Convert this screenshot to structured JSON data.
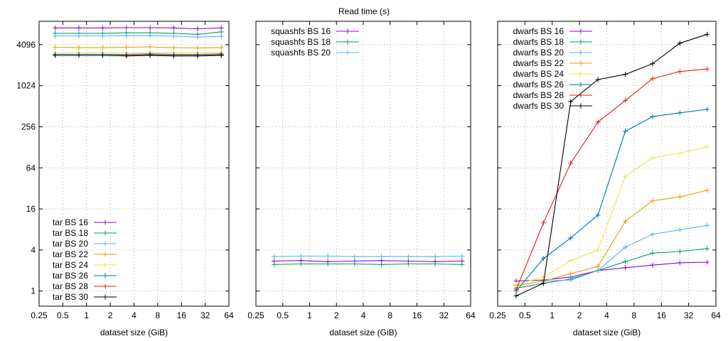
{
  "title": "Read time (s)",
  "chart_data": [
    {
      "type": "line",
      "xscale": "log2",
      "yscale": "log2",
      "xlim": [
        0.25,
        64
      ],
      "ylim": [
        0.6,
        9000
      ],
      "xticks": [
        "0.25",
        "0.5",
        "1",
        "2",
        "4",
        "8",
        "16",
        "32",
        "64"
      ],
      "yticks": [
        "1",
        "4",
        "16",
        "64",
        "256",
        "1024",
        "4096"
      ],
      "xlabel": "dataset size (GiB)",
      "legend_position": "bottom-left",
      "series": [
        {
          "name": "tar BS 16",
          "color": "#9400d3",
          "x": [
            0.4,
            0.8,
            1.6,
            3.2,
            6.4,
            12.8,
            25.6,
            51.2
          ],
          "y": [
            7200,
            7200,
            7200,
            7250,
            7250,
            7200,
            7000,
            7200
          ]
        },
        {
          "name": "tar BS 18",
          "color": "#009e73",
          "x": [
            0.4,
            0.8,
            1.6,
            3.2,
            6.4,
            12.8,
            25.6,
            51.2
          ],
          "y": [
            6000,
            6000,
            6000,
            6100,
            6100,
            6000,
            5800,
            6300
          ]
        },
        {
          "name": "tar BS 20",
          "color": "#56b4e9",
          "x": [
            0.4,
            0.8,
            1.6,
            3.2,
            6.4,
            12.8,
            25.6,
            51.2
          ],
          "y": [
            5500,
            5500,
            5500,
            5550,
            5550,
            5450,
            5300,
            5400
          ]
        },
        {
          "name": "tar BS 22",
          "color": "#e69f00",
          "x": [
            0.4,
            0.8,
            1.6,
            3.2,
            6.4,
            12.8,
            25.6,
            51.2
          ],
          "y": [
            3750,
            3700,
            3700,
            3750,
            3800,
            3700,
            3650,
            3700
          ]
        },
        {
          "name": "tar BS 24",
          "color": "#f0e442",
          "x": [
            0.4,
            0.8,
            1.6,
            3.2,
            6.4,
            12.8,
            25.6,
            51.2
          ],
          "y": [
            3100,
            3100,
            3100,
            3100,
            3150,
            3100,
            3100,
            3150
          ]
        },
        {
          "name": "tar BS 26",
          "color": "#0072b2",
          "x": [
            0.4,
            0.8,
            1.6,
            3.2,
            6.4,
            12.8,
            25.6,
            51.2
          ],
          "y": [
            2950,
            2950,
            2950,
            2950,
            3000,
            2950,
            2950,
            3000
          ]
        },
        {
          "name": "tar BS 28",
          "color": "#e51e10",
          "x": [
            0.4,
            0.8,
            1.6,
            3.2,
            6.4,
            12.8,
            25.6,
            51.2
          ],
          "y": [
            2850,
            2850,
            2850,
            2850,
            2900,
            2850,
            2850,
            2900
          ]
        },
        {
          "name": "tar BS 30",
          "color": "#000000",
          "x": [
            0.4,
            0.8,
            1.6,
            3.2,
            6.4,
            12.8,
            25.6,
            51.2
          ],
          "y": [
            2850,
            2850,
            2850,
            2800,
            2850,
            2800,
            2800,
            2850
          ]
        }
      ]
    },
    {
      "type": "line",
      "xscale": "log2",
      "yscale": "log2",
      "xlim": [
        0.25,
        64
      ],
      "ylim": [
        0.6,
        9000
      ],
      "xticks": [
        "0.25",
        "0.5",
        "1",
        "2",
        "4",
        "8",
        "16",
        "32",
        "64"
      ],
      "xlabel": "dataset size (GiB)",
      "legend_position": "top-left",
      "series": [
        {
          "name": "squashfs BS 16",
          "color": "#9400d3",
          "x": [
            0.4,
            0.8,
            1.6,
            3.2,
            6.4,
            12.8,
            25.6,
            51.2
          ],
          "y": [
            2.75,
            2.8,
            2.7,
            2.75,
            2.8,
            2.75,
            2.7,
            2.75
          ]
        },
        {
          "name": "squashfs BS 18",
          "color": "#009e73",
          "x": [
            0.4,
            0.8,
            1.6,
            3.2,
            6.4,
            12.8,
            25.6,
            51.2
          ],
          "y": [
            2.45,
            2.5,
            2.5,
            2.5,
            2.45,
            2.5,
            2.5,
            2.45
          ]
        },
        {
          "name": "squashfs BS 20",
          "color": "#56b4e9",
          "x": [
            0.4,
            0.8,
            1.6,
            3.2,
            6.4,
            12.8,
            25.6,
            51.2
          ],
          "y": [
            3.2,
            3.25,
            3.25,
            3.2,
            3.2,
            3.2,
            3.2,
            3.25
          ]
        }
      ]
    },
    {
      "type": "line",
      "xscale": "log2",
      "yscale": "log2",
      "xlim": [
        0.25,
        64
      ],
      "ylim": [
        0.6,
        9000
      ],
      "xticks": [
        "0.25",
        "0.5",
        "1",
        "2",
        "4",
        "8",
        "16",
        "32",
        "64"
      ],
      "xlabel": "dataset size (GiB)",
      "legend_position": "top-left",
      "series": [
        {
          "name": "dwarfs BS 16",
          "color": "#9400d3",
          "x": [
            0.4,
            0.8,
            1.6,
            3.2,
            6.4,
            12.8,
            25.6,
            51.2
          ],
          "y": [
            1.4,
            1.45,
            1.6,
            2.0,
            2.2,
            2.4,
            2.6,
            2.65
          ]
        },
        {
          "name": "dwarfs BS 18",
          "color": "#009e73",
          "x": [
            0.4,
            0.8,
            1.6,
            3.2,
            6.4,
            12.8,
            25.6,
            51.2
          ],
          "y": [
            1.1,
            1.3,
            1.5,
            2.0,
            2.7,
            3.6,
            3.8,
            4.2
          ]
        },
        {
          "name": "dwarfs BS 20",
          "color": "#56b4e9",
          "x": [
            0.4,
            0.8,
            1.6,
            3.2,
            6.4,
            12.8,
            25.6,
            51.2
          ],
          "y": [
            1.2,
            1.4,
            1.45,
            2.0,
            4.4,
            6.8,
            7.9,
            9.2
          ]
        },
        {
          "name": "dwarfs BS 22",
          "color": "#e69f00",
          "x": [
            0.4,
            0.8,
            1.6,
            3.2,
            6.4,
            12.8,
            25.6,
            51.2
          ],
          "y": [
            1.2,
            1.4,
            1.8,
            2.3,
            10.5,
            21,
            24,
            30
          ]
        },
        {
          "name": "dwarfs BS 24",
          "color": "#f0e442",
          "x": [
            0.4,
            0.8,
            1.6,
            3.2,
            6.4,
            12.8,
            25.6,
            51.2
          ],
          "y": [
            1.25,
            1.6,
            2.8,
            4.0,
            48,
            90,
            105,
            130
          ]
        },
        {
          "name": "dwarfs BS 26",
          "color": "#0072b2",
          "x": [
            0.4,
            0.8,
            1.6,
            3.2,
            6.4,
            12.8,
            25.6,
            51.2
          ],
          "y": [
            1.0,
            3.0,
            6.0,
            13,
            220,
            360,
            410,
            460
          ]
        },
        {
          "name": "dwarfs BS 28",
          "color": "#e51e10",
          "x": [
            0.4,
            0.8,
            1.6,
            3.2,
            6.4,
            12.8,
            25.6,
            51.2
          ],
          "y": [
            1.05,
            10,
            75,
            300,
            620,
            1300,
            1650,
            1800
          ]
        },
        {
          "name": "dwarfs BS 30",
          "color": "#000000",
          "x": [
            0.4,
            0.8,
            1.6,
            3.2,
            6.4,
            12.8,
            25.6,
            51.2
          ],
          "y": [
            0.85,
            1.3,
            600,
            1260,
            1500,
            2150,
            4300,
            5800
          ]
        }
      ]
    }
  ]
}
